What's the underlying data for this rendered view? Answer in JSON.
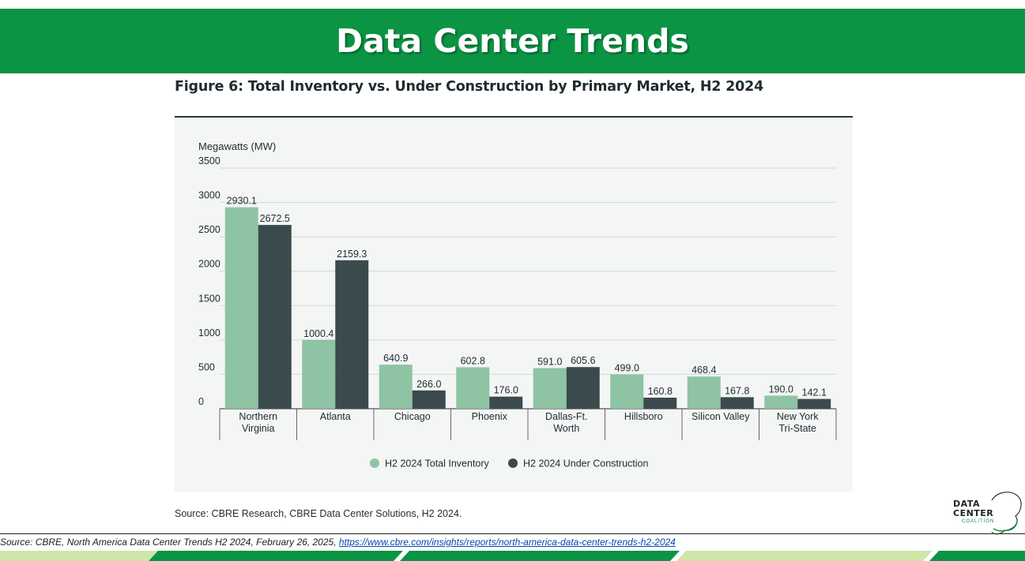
{
  "header": {
    "title": "Data Center Trends"
  },
  "figure": {
    "title": "Figure 6: Total Inventory vs. Under Construction by Primary Market, H2 2024",
    "source": "Source: CBRE Research, CBRE Data Center Solutions, H2 2024."
  },
  "chart_data": {
    "type": "bar",
    "title": "Figure 6: Total Inventory vs. Under Construction by Primary Market, H2 2024",
    "ylabel": "Megawatts (MW)",
    "xlabel": "",
    "ylim": [
      0,
      3500
    ],
    "yticks": [
      "3500",
      "3000",
      "2500",
      "2000",
      "1500",
      "1000",
      "500",
      "0"
    ],
    "ytick_values": [
      3500,
      3000,
      2500,
      2000,
      1500,
      1000,
      500,
      0
    ],
    "grid": true,
    "legend_position": "bottom-center",
    "categories": [
      [
        "Northern",
        "Virginia"
      ],
      [
        "Atlanta"
      ],
      [
        "Chicago"
      ],
      [
        "Phoenix"
      ],
      [
        "Dallas-Ft.",
        "Worth"
      ],
      [
        "Hillsboro"
      ],
      [
        "Silicon Valley"
      ],
      [
        "New York",
        "Tri-State"
      ]
    ],
    "series": [
      {
        "name": "H2 2024 Total Inventory",
        "color": "#8ec3a4",
        "values": [
          2930.1,
          1000.4,
          640.9,
          602.8,
          591.0,
          499.0,
          468.4,
          190.0
        ],
        "labels": [
          "2930.1",
          "1000.4",
          "640.9",
          "602.8",
          "591.0",
          "499.0",
          "468.4",
          "190.0"
        ]
      },
      {
        "name": "H2 2024 Under Construction",
        "color": "#3b4a4d",
        "values": [
          2672.5,
          2159.3,
          266.0,
          176.0,
          605.6,
          160.8,
          167.8,
          142.1
        ],
        "labels": [
          "2672.5",
          "2159.3",
          "266.0",
          "176.0",
          "605.6",
          "160.8",
          "167.8",
          "142.1"
        ]
      }
    ]
  },
  "logo": {
    "line1": "DATA",
    "line2": "CENTER",
    "line3": "COALITION"
  },
  "footer": {
    "source_prefix": "Source: CBRE, North America Data Center Trends H2 2024, February 26, 2025, ",
    "source_link": "https://www.cbre.com/insights/reports/north-america-data-center-trends-h2-2024"
  },
  "colors": {
    "header_green": "#0b9444",
    "panel_bg": "#f4f5f5"
  }
}
